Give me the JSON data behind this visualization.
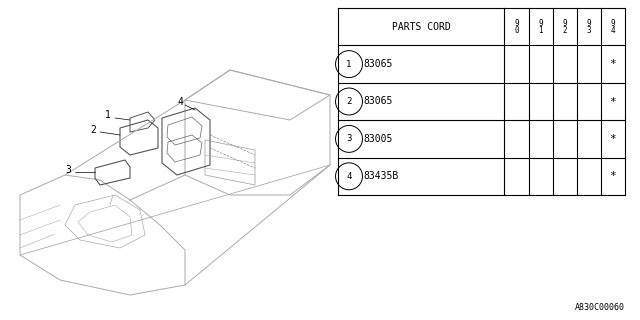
{
  "bg_color": "#ffffff",
  "title_code": "A830C00060",
  "table": {
    "header_col": "PARTS CORD",
    "year_cols": [
      "9\n0",
      "9\n1",
      "9\n2",
      "9\n3",
      "9\n4"
    ],
    "rows": [
      {
        "num": "1",
        "part": "83065",
        "marks": [
          "",
          "",
          "",
          "",
          "*"
        ]
      },
      {
        "num": "2",
        "part": "83065",
        "marks": [
          "",
          "",
          "",
          "",
          "*"
        ]
      },
      {
        "num": "3",
        "part": "83005",
        "marks": [
          "",
          "",
          "",
          "",
          "*"
        ]
      },
      {
        "num": "4",
        "part": "83435B",
        "marks": [
          "",
          "",
          "",
          "",
          "*"
        ]
      }
    ]
  },
  "line_color": "#000000",
  "text_color": "#000000",
  "font_size": 7
}
